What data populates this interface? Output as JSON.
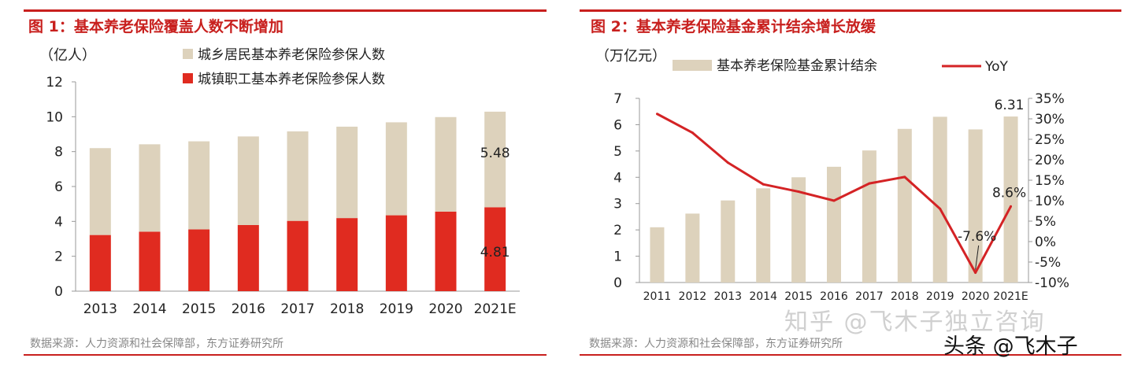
{
  "colors": {
    "accent": "#c8201e",
    "beige": "#ddd2bc",
    "red": "#e02b20",
    "line": "#d42325",
    "grey_text": "#888888"
  },
  "watermarks": {
    "zhihu": "知乎 @飞木子独立咨询",
    "toutiao": "头条 @飞木子"
  },
  "chart_data": [
    {
      "type": "bar",
      "title": "图 1：基本养老保险覆盖人数不断增加",
      "ylabel": "（亿人）",
      "ylim": [
        0,
        12
      ],
      "yticks": [
        0,
        2,
        4,
        6,
        8,
        10,
        12
      ],
      "categories": [
        "2013",
        "2014",
        "2015",
        "2016",
        "2017",
        "2018",
        "2019",
        "2020",
        "2021E"
      ],
      "series": [
        {
          "name": "城镇职工基本养老保险参保人数",
          "color": "#e02b20",
          "values": [
            3.22,
            3.41,
            3.54,
            3.79,
            4.03,
            4.19,
            4.35,
            4.56,
            4.81
          ]
        },
        {
          "name": "城乡居民基本养老保险参保人数",
          "color": "#ddd2bc",
          "values": [
            4.98,
            5.01,
            5.05,
            5.08,
            5.13,
            5.24,
            5.33,
            5.42,
            5.48
          ]
        }
      ],
      "stacked": true,
      "annotations": [
        {
          "text": "5.48",
          "category": "2021E",
          "series": 1
        },
        {
          "text": "4.81",
          "category": "2021E",
          "series": 0
        }
      ],
      "source": "数据来源：人力资源和社会保障部，东方证券研究所"
    },
    {
      "type": "bar+line",
      "title": "图 2：基本养老保险基金累计结余增长放缓",
      "ylabel": "（万亿元）",
      "ylim": [
        0,
        7
      ],
      "yticks": [
        0,
        1,
        2,
        3,
        4,
        5,
        6,
        7
      ],
      "y2lim": [
        -10,
        35
      ],
      "y2ticks": [
        "-10%",
        "-5%",
        "0%",
        "5%",
        "10%",
        "15%",
        "20%",
        "25%",
        "30%",
        "35%"
      ],
      "categories": [
        "2011",
        "2012",
        "2013",
        "2014",
        "2015",
        "2016",
        "2017",
        "2018",
        "2019",
        "2020",
        "2021E"
      ],
      "series": [
        {
          "name": "基本养老保险基金累计结余",
          "type": "bar",
          "axis": "left",
          "color": "#ddd2bc",
          "values": [
            2.1,
            2.62,
            3.12,
            3.58,
            4.0,
            4.4,
            5.02,
            5.84,
            6.3,
            5.82,
            6.31
          ]
        },
        {
          "name": "YoY",
          "type": "line",
          "axis": "right",
          "color": "#d42325",
          "values": [
            31.2,
            26.6,
            19.3,
            14.0,
            12.2,
            10.0,
            14.2,
            15.8,
            8.0,
            -7.6,
            8.6
          ]
        }
      ],
      "annotations": [
        {
          "text": "6.31",
          "category": "2021E",
          "series": 0
        },
        {
          "text": "-7.6%",
          "category": "2020",
          "series": 1
        },
        {
          "text": "8.6%",
          "category": "2021E",
          "series": 1
        }
      ],
      "source": "数据来源：人力资源和社会保障部，东方证券研究所"
    }
  ]
}
